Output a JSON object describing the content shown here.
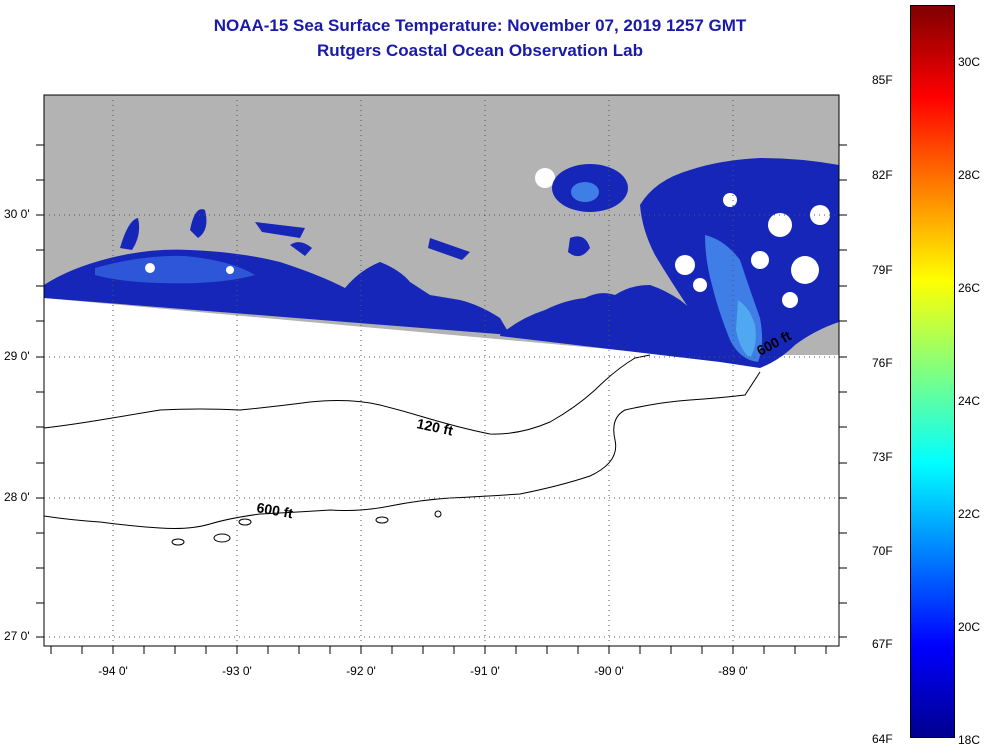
{
  "title": {
    "line1": "NOAA-15 Sea Surface Temperature:  November 07, 2019 1257 GMT",
    "line2": "Rutgers Coastal Ocean Observation Lab"
  },
  "map": {
    "lat_labels": [
      "30 0'",
      "29 0'",
      "28 0'",
      "27 0'"
    ],
    "lon_labels": [
      "-94 0'",
      "-93 0'",
      "-92 0'",
      "-91 0'",
      "-90 0'",
      "-89 0'"
    ],
    "contour_labels": [
      "120 ft",
      "600 ft",
      "600 ft"
    ],
    "land_color": "#b3b3b3",
    "sst_color_cold": "#0a1aa0"
  },
  "colorbar": {
    "fahrenheit_labels": [
      "85F",
      "82F",
      "79F",
      "76F",
      "73F",
      "70F",
      "67F",
      "64F"
    ],
    "celsius_labels": [
      "30C",
      "28C",
      "26C",
      "24C",
      "22C",
      "20C",
      "18C"
    ],
    "colors": [
      "#00008f",
      "#0000ff",
      "#0080ff",
      "#00ffff",
      "#80ff80",
      "#ffff00",
      "#ff8000",
      "#ff0000",
      "#800000"
    ]
  }
}
